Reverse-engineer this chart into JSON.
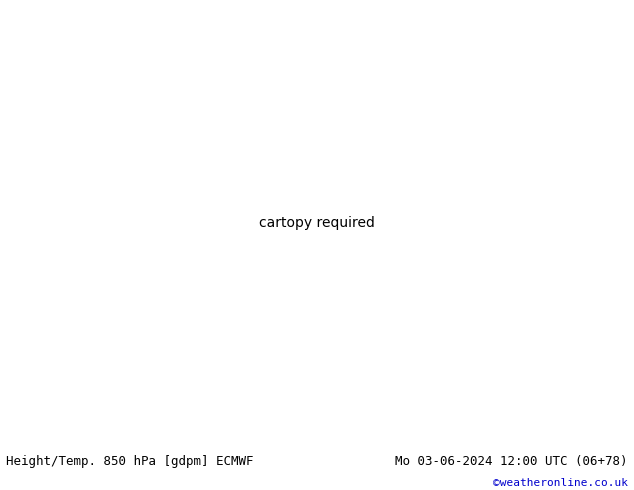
{
  "title_left": "Height/Temp. 850 hPa [gdpm] ECMWF",
  "title_right": "Mo 03-06-2024 12:00 UTC (06+78)",
  "credit": "©weatheronline.co.uk",
  "fig_width": 6.34,
  "fig_height": 4.9,
  "dpi": 100,
  "ocean_color": "#d8d8d8",
  "land_color": "#c8e8a8",
  "land_color2": "#b8e0a0",
  "border_color": "#aaaaaa",
  "bottom_text_color": "#000000",
  "credit_color": "#0000cc",
  "title_fontsize": 9,
  "credit_fontsize": 8,
  "map_extent": [
    -20,
    60,
    -40,
    40
  ],
  "proj_lon0": 20.0
}
